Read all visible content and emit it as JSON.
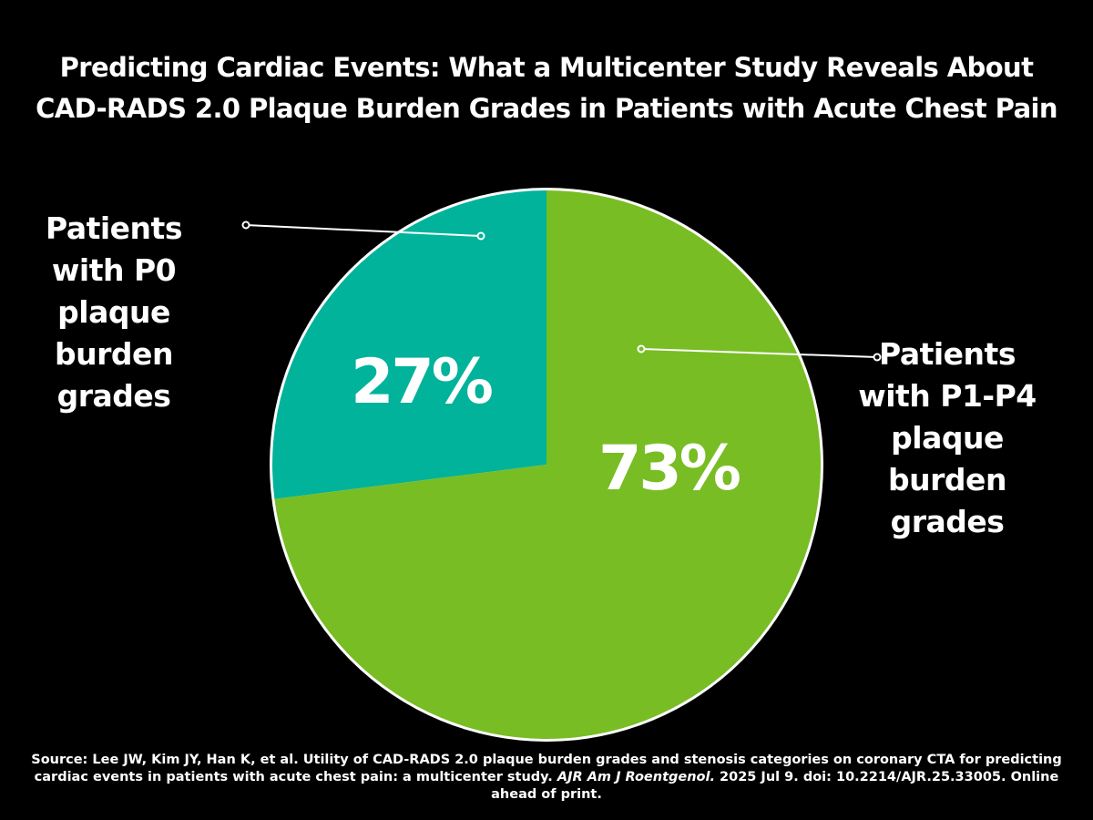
{
  "title": {
    "line1": "Predicting Cardiac Events: What a Multicenter Study Reveals About",
    "line2": "CAD-RADS 2.0 Plaque Burden Grades in Patients with Acute Chest Pain"
  },
  "chart_data": {
    "type": "pie",
    "title": "Predicting Cardiac Events: What a Multicenter Study Reveals About CAD-RADS 2.0 Plaque Burden Grades in Patients with Acute Chest Pain",
    "slices": [
      {
        "name": "P0",
        "value": 27,
        "label": "27%",
        "color": "#00b39a",
        "callout_lines": [
          "Patients",
          "with P0",
          "plaque",
          "burden",
          "grades"
        ]
      },
      {
        "name": "P1-P4",
        "value": 73,
        "label": "73%",
        "color": "#78bd23",
        "callout_lines": [
          "Patients",
          "with P1-P4",
          "plaque",
          "burden",
          "grades"
        ]
      }
    ],
    "start": "12 o'clock, counter-clockwise for first slice",
    "border_color": "#ffffff"
  },
  "source": {
    "line1": "Source: Lee JW, Kim JY, Han K, et al. Utility of CAD-RADS 2.0 plaque burden grades and stenosis categories on coronary CTA for predicting",
    "line2_pre": "cardiac events in patients with acute chest pain: a multicenter study. ",
    "line2_journal": "AJR Am J Roentgenol.",
    "line2_post": " 2025 Jul 9. doi: 10.2214/AJR.25.33005. Online",
    "line3": "ahead of print."
  }
}
